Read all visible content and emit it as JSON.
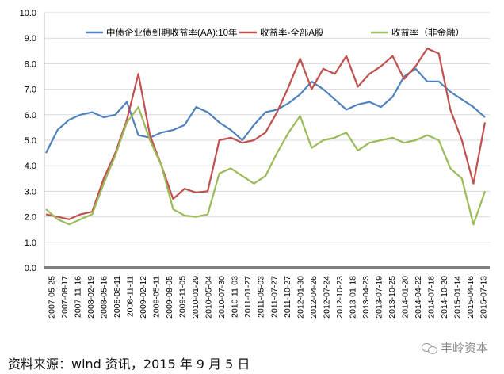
{
  "chart_data": {
    "type": "line",
    "ylim": [
      0,
      10
    ],
    "y_ticks": [
      "0.0",
      "1.0",
      "2.0",
      "3.0",
      "4.0",
      "5.0",
      "6.0",
      "7.0",
      "8.0",
      "9.0",
      "10.0"
    ],
    "x_tick_labels": [
      "2007-05-25",
      "2007-08-17",
      "2007-11-16",
      "2008-02-19",
      "2008-05-16",
      "2008-08-11",
      "2008-11-11",
      "2009-02-12",
      "2009-05-11",
      "2009-08-05",
      "2009-11-05",
      "2010-01-29",
      "2010-05-04",
      "2010-07-30",
      "2010-11-03",
      "2011-01-27",
      "2011-05-03",
      "2011-07-27",
      "2011-10-27",
      "2012-01-30",
      "2012-04-26",
      "2012-07-24",
      "2012-10-23",
      "2013-01-18",
      "2013-04-23",
      "2013-07-19",
      "2013-10-25",
      "2014-01-20",
      "2014-04-22",
      "2014-07-18",
      "2014-10-20",
      "2015-01-14",
      "2015-04-16",
      "2015-07-13"
    ],
    "grid": "horizontal",
    "legend_position": "top",
    "series": [
      {
        "name": "中债企业债到期收益率(AA):10年",
        "color": "#4f81bd",
        "values": [
          4.5,
          5.4,
          5.8,
          6.0,
          6.1,
          5.9,
          6.0,
          6.5,
          5.2,
          5.1,
          5.3,
          5.4,
          5.6,
          6.3,
          6.1,
          5.7,
          5.4,
          5.0,
          5.6,
          6.1,
          6.2,
          6.45,
          6.8,
          7.3,
          7.0,
          6.6,
          6.2,
          6.4,
          6.5,
          6.3,
          6.7,
          7.5,
          7.8,
          7.3,
          7.3,
          6.9,
          6.6,
          6.3,
          5.9
        ]
      },
      {
        "name": "收益率-全部A股",
        "color": "#c0504d",
        "values": [
          2.1,
          2.0,
          1.9,
          2.1,
          2.2,
          3.5,
          4.5,
          5.8,
          7.6,
          5.2,
          4.0,
          2.7,
          3.1,
          2.95,
          3.0,
          5.0,
          5.1,
          4.9,
          5.0,
          5.3,
          6.1,
          7.1,
          8.2,
          7.0,
          7.8,
          7.6,
          8.3,
          7.1,
          7.6,
          7.9,
          8.3,
          7.4,
          7.9,
          8.6,
          8.4,
          6.2,
          5.0,
          3.3,
          5.7
        ]
      },
      {
        "name": "收益率（非金融）",
        "color": "#9bbb59",
        "values": [
          2.3,
          1.9,
          1.7,
          1.9,
          2.1,
          3.3,
          4.4,
          5.7,
          6.3,
          5.0,
          4.0,
          2.3,
          2.05,
          2.0,
          2.1,
          3.7,
          3.9,
          3.6,
          3.3,
          3.6,
          4.5,
          5.3,
          5.95,
          4.7,
          5.0,
          5.1,
          5.3,
          4.6,
          4.9,
          5.0,
          5.1,
          4.9,
          5.0,
          5.2,
          5.0,
          3.9,
          3.5,
          1.7,
          3.0
        ]
      }
    ]
  },
  "source_note": "资料来源：wind 资讯，2015 年 9 月 5 日",
  "watermark": "丰岭资本"
}
